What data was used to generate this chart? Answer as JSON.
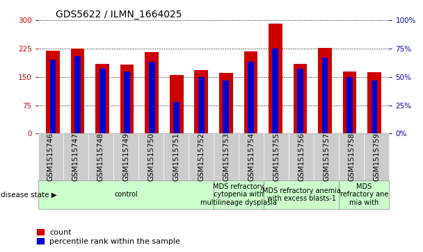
{
  "title": "GDS5622 / ILMN_1664025",
  "samples": [
    "GSM1515746",
    "GSM1515747",
    "GSM1515748",
    "GSM1515749",
    "GSM1515750",
    "GSM1515751",
    "GSM1515752",
    "GSM1515753",
    "GSM1515754",
    "GSM1515755",
    "GSM1515756",
    "GSM1515757",
    "GSM1515758",
    "GSM1515759"
  ],
  "counts": [
    220,
    225,
    185,
    182,
    215,
    155,
    167,
    160,
    218,
    290,
    185,
    226,
    165,
    163
  ],
  "percentile_ranks": [
    65,
    68,
    57,
    55,
    63,
    28,
    50,
    47,
    63,
    75,
    57,
    67,
    50,
    47
  ],
  "disease_states": [
    {
      "label": "control",
      "start": 0,
      "end": 7
    },
    {
      "label": "MDS refractory\ncytopenia with\nmultilineage dysplasia",
      "start": 7,
      "end": 9
    },
    {
      "label": "MDS refractory anemia\nwith excess blasts-1",
      "start": 9,
      "end": 12
    },
    {
      "label": "MDS\nrefractory ane\nmia with",
      "start": 12,
      "end": 14
    }
  ],
  "ylim_left": [
    0,
    300
  ],
  "ylim_right": [
    0,
    100
  ],
  "yticks_left": [
    0,
    75,
    150,
    225,
    300
  ],
  "yticks_right": [
    0,
    25,
    50,
    75,
    100
  ],
  "bar_color": "#cc0000",
  "percentile_color": "#0000cc",
  "tick_color_left": "#cc0000",
  "tick_color_right": "#0000bb",
  "grid_color": "black",
  "bar_width": 0.55,
  "title_fontsize": 10,
  "tick_fontsize": 7.5,
  "label_fontsize": 7,
  "legend_fontsize": 8,
  "disease_state_label": "disease state"
}
